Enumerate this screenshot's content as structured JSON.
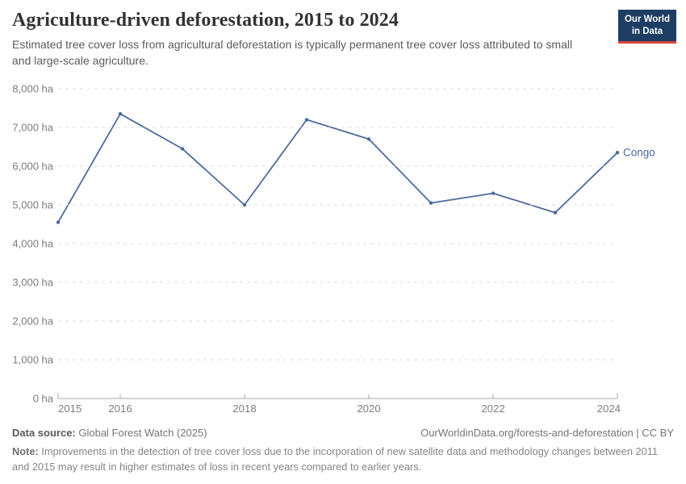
{
  "header": {
    "title": "Agriculture-driven deforestation, 2015 to 2024",
    "subtitle": "Estimated tree cover loss from agricultural deforestation is typically permanent tree cover loss attributed to small and large-scale agriculture.",
    "logo": {
      "line1": "Our World",
      "line2": "in Data"
    }
  },
  "chart_data": {
    "type": "line",
    "title": "Agriculture-driven deforestation, 2015 to 2024",
    "unit": "ha",
    "x": [
      2015,
      2016,
      2017,
      2018,
      2019,
      2020,
      2021,
      2022,
      2023,
      2024
    ],
    "series": [
      {
        "name": "Congo",
        "color": "#4c6a9c",
        "values": [
          4550,
          7350,
          6450,
          5000,
          7200,
          6700,
          5050,
          5300,
          4800,
          6350
        ]
      }
    ],
    "ylim": [
      0,
      8000
    ],
    "ytick_step": 1000,
    "ytick_labels": [
      "0 ha",
      "1,000 ha",
      "2,000 ha",
      "3,000 ha",
      "4,000 ha",
      "5,000 ha",
      "6,000 ha",
      "7,000 ha",
      "8,000 ha"
    ],
    "xticks": [
      2015,
      2016,
      2018,
      2020,
      2022,
      2024
    ],
    "xtick_labels": [
      "2015",
      "2016",
      "2018",
      "2020",
      "2022",
      "2024"
    ],
    "grid": "horizontal-dashed",
    "legend": "series-end-label"
  },
  "footer": {
    "datasource_label": "Data source:",
    "datasource_value": " Global Forest Watch (2025)",
    "link": "OurWorldinData.org/forests-and-deforestation | CC BY",
    "note_label": "Note:",
    "note_text": " Improvements in the detection of tree cover loss due to the incorporation of new satellite data and methodology changes between 2011 and 2015 may result in higher estimates of loss in recent years compared to earlier years."
  },
  "colors": {
    "line": "#4c6a9c",
    "grid": "#dddddd",
    "axis_line": "#a8a8a8",
    "axis_text": "#7d7d7d",
    "title": "#333333",
    "logo_bg": "#1d3d63",
    "logo_accent": "#dc4340"
  }
}
